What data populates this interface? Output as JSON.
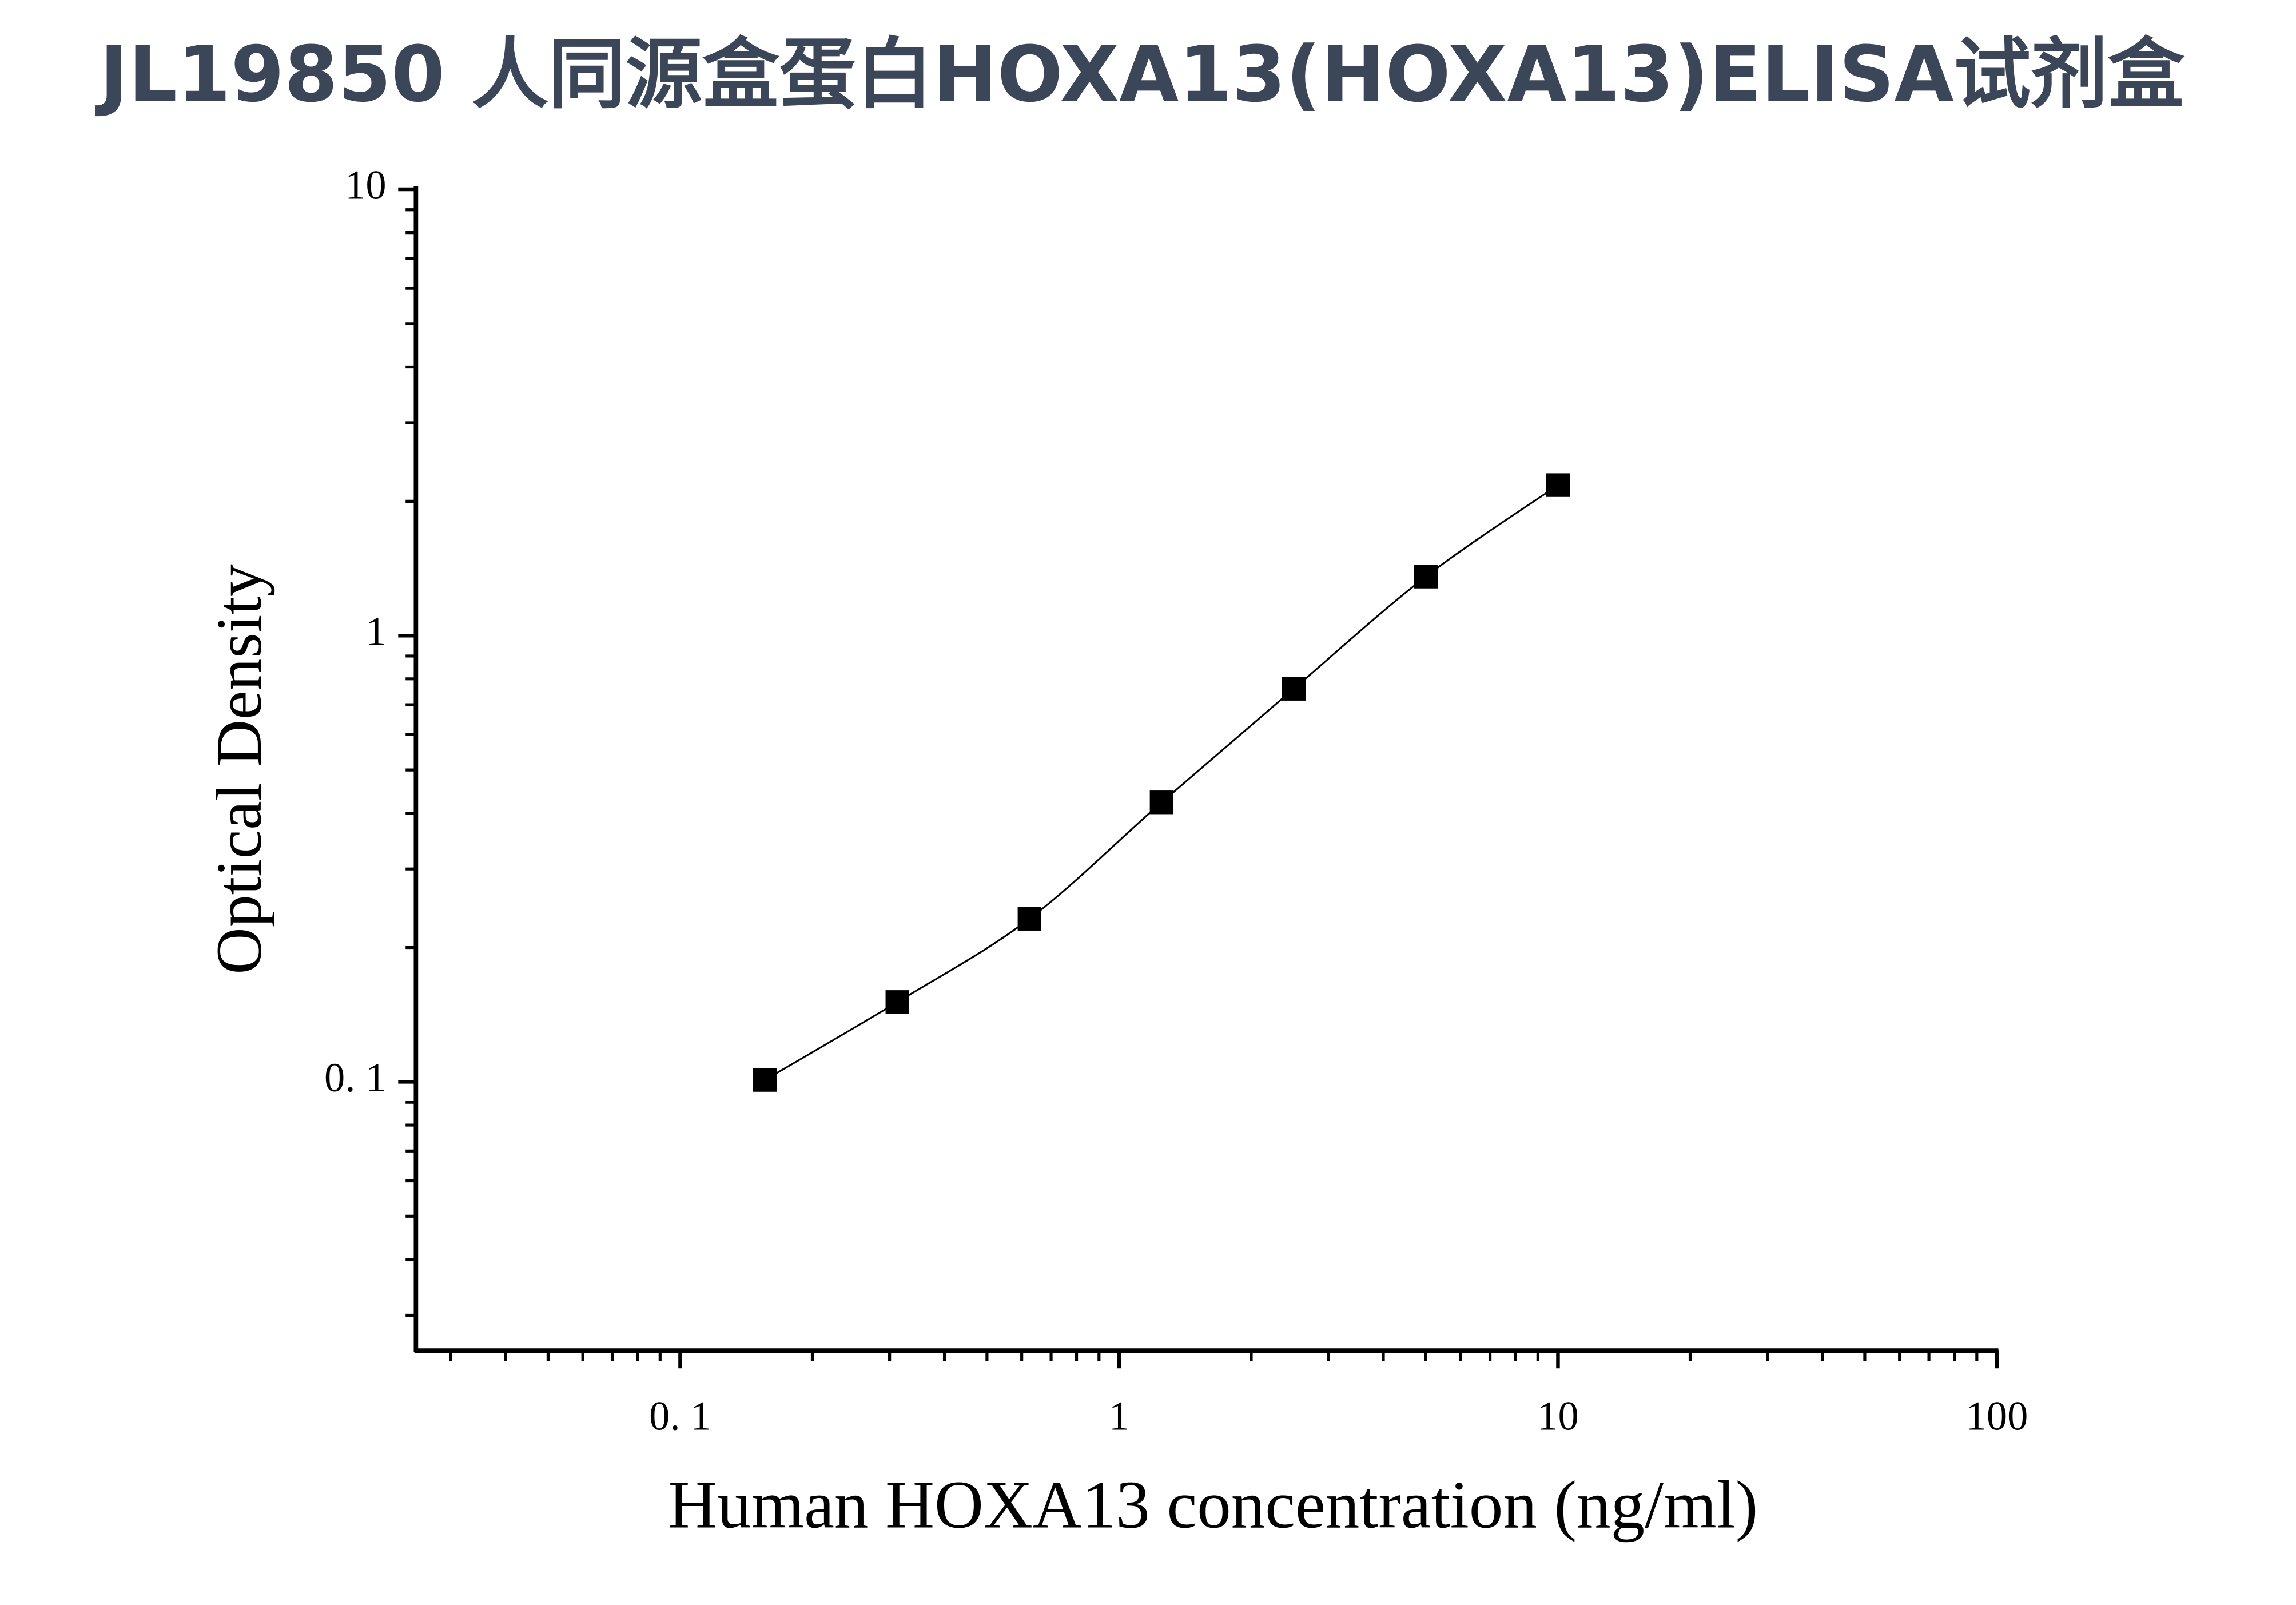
{
  "chart_data": {
    "type": "scatter",
    "title": "JL19850 人同源盒蛋白HOXA13(HOXA13)ELISA试剂盒",
    "x_label": "Human HOXA13 concentration (ng/ml)",
    "y_label": "Optical Density",
    "x_log": true,
    "y_log": true,
    "xlim": [
      0.025,
      100
    ],
    "ylim": [
      0.025,
      10
    ],
    "xticks": [
      {
        "value": 0.1,
        "label": "0. 1"
      },
      1,
      10,
      100
    ],
    "yticks": [
      {
        "value": 0.1,
        "label": "0. 1"
      },
      1,
      10
    ],
    "xminorticks": [
      0.03,
      0.04,
      0.05,
      0.06,
      0.07,
      0.08,
      0.09,
      0.2,
      0.3,
      0.4,
      0.5,
      0.6,
      0.7,
      0.8,
      0.9,
      2,
      3,
      4,
      5,
      6,
      7,
      8,
      9,
      20,
      30,
      40,
      50,
      60,
      70,
      80,
      90
    ],
    "yminorticks": [
      0.03,
      0.04,
      0.05,
      0.06,
      0.07,
      0.08,
      0.09,
      0.2,
      0.3,
      0.4,
      0.5,
      0.6,
      0.7,
      0.8,
      0.9,
      2,
      3,
      4,
      5,
      6,
      7,
      8,
      9
    ],
    "series": [
      {
        "color": "#000000",
        "x": [
          0.156,
          0.3125,
          0.625,
          1.25,
          2.5,
          5,
          10
        ],
        "values": [
          0.101,
          0.151,
          0.232,
          0.423,
          0.76,
          1.356,
          2.174
        ]
      }
    ]
  }
}
